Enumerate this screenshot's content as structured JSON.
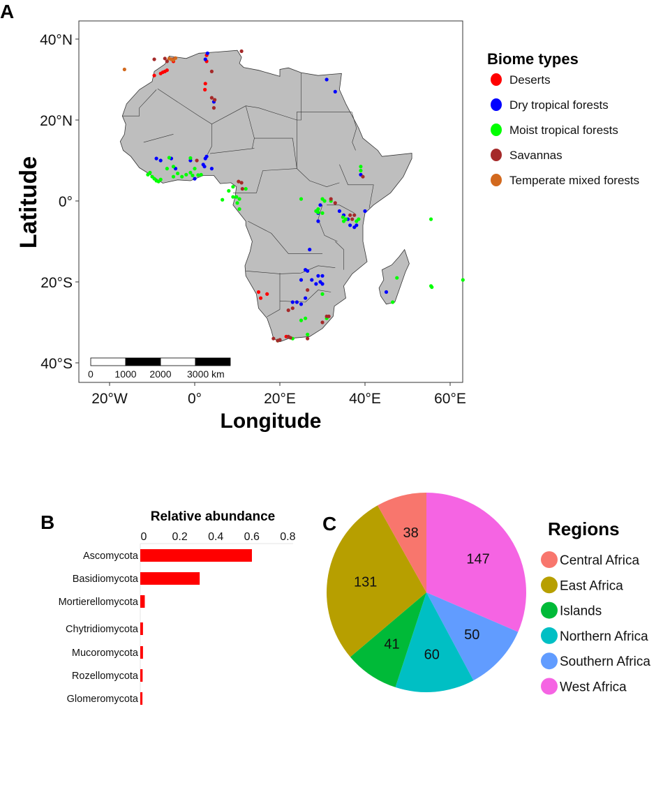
{
  "chart_data": [
    {
      "panel": "A",
      "type": "scatter",
      "subtype": "map",
      "xlabel": "Longitude",
      "ylabel": "Latitude",
      "xlim": [
        -27,
        63
      ],
      "ylim": [
        -44,
        44
      ],
      "x_ticks": [
        {
          "value": -20,
          "label": "20°W"
        },
        {
          "value": 0,
          "label": "0°"
        },
        {
          "value": 20,
          "label": "20°E"
        },
        {
          "value": 40,
          "label": "40°E"
        },
        {
          "value": 60,
          "label": "60°E"
        }
      ],
      "y_ticks": [
        {
          "value": 40,
          "label": "40°N"
        },
        {
          "value": 20,
          "label": "20°N"
        },
        {
          "value": 0,
          "label": "0°"
        },
        {
          "value": -20,
          "label": "20°S"
        },
        {
          "value": -40,
          "label": "40°S"
        }
      ],
      "scalebar": {
        "labels": [
          "0",
          "1000",
          "2000",
          "3000 km"
        ]
      },
      "legend": {
        "title": "Biome types",
        "placement": "right",
        "items": [
          {
            "name": "Deserts",
            "color": "#ff0000"
          },
          {
            "name": "Dry tropical forests",
            "color": "#0000ff"
          },
          {
            "name": "Moist tropical forests",
            "color": "#00ff00"
          },
          {
            "name": "Savannas",
            "color": "#a52a2a"
          },
          {
            "name": "Temperate mixed forests",
            "color": "#d2691e"
          }
        ]
      },
      "series": [
        {
          "name": "Deserts",
          "points": [
            [
              -8,
              31.5
            ],
            [
              -7.5,
              31.8
            ],
            [
              -7,
              32
            ],
            [
              -6.5,
              32.3
            ],
            [
              -9.5,
              31
            ],
            [
              2.8,
              36
            ],
            [
              2.8,
              34.5
            ],
            [
              2.5,
              29
            ],
            [
              2.4,
              27.5
            ],
            [
              15,
              -22.5
            ],
            [
              15.5,
              -24
            ],
            [
              17,
              -23
            ],
            [
              21.5,
              -33.5
            ],
            [
              -5,
              34.5
            ]
          ]
        },
        {
          "name": "Dry tropical forests",
          "points": [
            [
              3,
              36.5
            ],
            [
              2.5,
              35
            ],
            [
              4.5,
              24.5
            ],
            [
              31,
              30
            ],
            [
              33,
              27
            ],
            [
              -9,
              10.5
            ],
            [
              -8,
              10
            ],
            [
              -5.5,
              10.5
            ],
            [
              -4.5,
              8
            ],
            [
              -1,
              10
            ],
            [
              2,
              9
            ],
            [
              2.5,
              10.5
            ],
            [
              2.8,
              11
            ],
            [
              2.3,
              8.5
            ],
            [
              4,
              8
            ],
            [
              0,
              5.5
            ],
            [
              29.5,
              -1
            ],
            [
              29,
              -3
            ],
            [
              29,
              -5
            ],
            [
              34,
              -2.5
            ],
            [
              35,
              -3.5
            ],
            [
              36,
              -4.5
            ],
            [
              36.5,
              -6
            ],
            [
              37.5,
              -6.5
            ],
            [
              38,
              -6
            ],
            [
              40,
              -2.5
            ],
            [
              27,
              -12
            ],
            [
              26,
              -17
            ],
            [
              26.5,
              -17.3
            ],
            [
              25,
              -19.5
            ],
            [
              27.5,
              -19.5
            ],
            [
              29,
              -18.5
            ],
            [
              30,
              -18.5
            ],
            [
              29.5,
              -20
            ],
            [
              28.5,
              -20.5
            ],
            [
              30,
              -20.5
            ],
            [
              26,
              -24
            ],
            [
              23,
              -25
            ],
            [
              24,
              -25
            ],
            [
              25,
              -25.5
            ],
            [
              45,
              -22.5
            ],
            [
              39,
              6.5
            ]
          ]
        },
        {
          "name": "Moist tropical forests",
          "points": [
            [
              -11,
              6.5
            ],
            [
              -10,
              6
            ],
            [
              -9.5,
              5.5
            ],
            [
              -9,
              5
            ],
            [
              -8.5,
              4.8
            ],
            [
              -8,
              5.3
            ],
            [
              -10.5,
              7
            ],
            [
              -6,
              10.7
            ],
            [
              -6.5,
              8
            ],
            [
              -5,
              8.5
            ],
            [
              -4,
              6.8
            ],
            [
              -3,
              6
            ],
            [
              -2,
              6.5
            ],
            [
              -1,
              7
            ],
            [
              -0.5,
              6.3
            ],
            [
              0.8,
              6.4
            ],
            [
              1.5,
              6.5
            ],
            [
              -1,
              10.6
            ],
            [
              0,
              8
            ],
            [
              -5,
              6
            ],
            [
              9,
              3.5
            ],
            [
              8,
              2.5
            ],
            [
              9.8,
              1
            ],
            [
              9,
              1
            ],
            [
              10.5,
              0.5
            ],
            [
              10,
              -0.5
            ],
            [
              10.5,
              -2
            ],
            [
              6.5,
              0.3
            ],
            [
              12,
              3
            ],
            [
              25,
              0.5
            ],
            [
              30,
              0.5
            ],
            [
              30.5,
              0
            ],
            [
              28.5,
              -2.5
            ],
            [
              29,
              -2.8
            ],
            [
              30,
              -3
            ],
            [
              32,
              0
            ],
            [
              34.8,
              -4
            ],
            [
              35,
              -5
            ],
            [
              38,
              -5
            ],
            [
              38.5,
              -4.5
            ],
            [
              39,
              8.5
            ],
            [
              39,
              7.5
            ],
            [
              55.5,
              -4.5
            ],
            [
              55.5,
              -21
            ],
            [
              55.7,
              -21.3
            ],
            [
              63,
              -19.5
            ],
            [
              47.5,
              -19
            ],
            [
              46.5,
              -25
            ],
            [
              26,
              -29
            ],
            [
              25,
              -29.5
            ],
            [
              31,
              -29
            ],
            [
              26.5,
              -33
            ],
            [
              23,
              -34
            ],
            [
              19.5,
              -34.5
            ],
            [
              30,
              -23
            ],
            [
              35.5,
              -4.5
            ],
            [
              29,
              -2
            ]
          ]
        },
        {
          "name": "Savannas",
          "points": [
            [
              -9.5,
              35
            ],
            [
              -7,
              35.2
            ],
            [
              -6.5,
              34.5
            ],
            [
              -5,
              35
            ],
            [
              11,
              37
            ],
            [
              4,
              32
            ],
            [
              4,
              25.5
            ],
            [
              4.7,
              25
            ],
            [
              4.5,
              23
            ],
            [
              0.5,
              10
            ],
            [
              11,
              4.5
            ],
            [
              10.3,
              4.8
            ],
            [
              11.2,
              3
            ],
            [
              33,
              -0.5
            ],
            [
              32,
              0.5
            ],
            [
              36.5,
              -3.5
            ],
            [
              37.5,
              -3.5
            ],
            [
              37,
              -4.5
            ],
            [
              39.5,
              6
            ],
            [
              26.5,
              -22
            ],
            [
              22,
              -27
            ],
            [
              23,
              -26.5
            ],
            [
              31,
              -28.5
            ],
            [
              31.5,
              -28.5
            ],
            [
              30,
              -30
            ],
            [
              26.5,
              -34
            ],
            [
              22,
              -33.5
            ],
            [
              18.5,
              -34
            ],
            [
              19.5,
              -34.5
            ],
            [
              20,
              -34.3
            ],
            [
              22.5,
              -33.8
            ]
          ]
        },
        {
          "name": "Temperate mixed forests",
          "points": [
            [
              -16.5,
              32.5
            ],
            [
              -5.5,
              35
            ],
            [
              -5,
              34.8
            ],
            [
              -4.5,
              35.3
            ],
            [
              -6,
              35.2
            ]
          ]
        }
      ]
    },
    {
      "panel": "B",
      "type": "bar",
      "orientation": "horizontal",
      "title": "Relative abundance",
      "xlim": [
        0,
        0.8
      ],
      "x_ticks": [
        "0",
        "0.2",
        "0.4",
        "0.6",
        "0.8"
      ],
      "categories": [
        "Ascomycota",
        "Basidiomycota",
        "Mortierellomycota",
        "Chytridiomycota",
        "Mucoromycota",
        "Rozellomycota",
        "Glomeromycota"
      ],
      "values": [
        0.62,
        0.33,
        0.025,
        0.015,
        0.015,
        0.013,
        0.012
      ],
      "color": "#ff0000"
    },
    {
      "panel": "C",
      "type": "pie",
      "legend": {
        "title": "Regions",
        "placement": "right"
      },
      "slices": [
        {
          "name": "Central Africa",
          "value": 38,
          "label": "38",
          "color": "#F8766D"
        },
        {
          "name": "East Africa",
          "value": 131,
          "label": "131",
          "color": "#B79F00"
        },
        {
          "name": "Islands",
          "value": 41,
          "label": "41",
          "color": "#00BA38"
        },
        {
          "name": "Northern Africa",
          "value": 60,
          "label": "60",
          "color": "#00BFC4"
        },
        {
          "name": "Southern Africa",
          "value": 50,
          "label": "50",
          "color": "#619CFF"
        },
        {
          "name": "West Africa",
          "value": 147,
          "label": "147",
          "color": "#F564E3"
        }
      ]
    }
  ],
  "panel_labels": {
    "a": "A",
    "b": "B",
    "c": "C"
  }
}
